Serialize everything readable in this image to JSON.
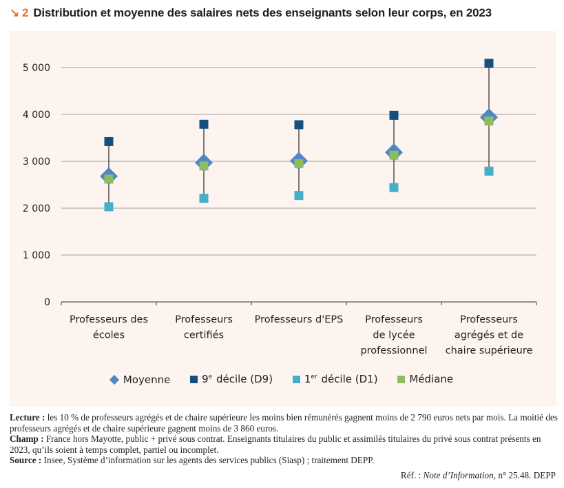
{
  "title": {
    "arrow": "↘",
    "number": "2",
    "text": "Distribution et moyenne des salaires nets des enseignants selon leur corps, en 2023"
  },
  "colors": {
    "panel_bg": "#fdf4ef",
    "moyenne": "#4f86c6",
    "d9": "#14507f",
    "d1": "#45afc7",
    "mediane": "#91bb60",
    "title_accent": "#e8702a"
  },
  "chart_data": {
    "type": "scatter",
    "title": "Distribution et moyenne des salaires nets des enseignants selon leur corps, en 2023",
    "xlabel": "",
    "ylabel": "",
    "ylim": [
      0,
      5000
    ],
    "yticks": [
      0,
      1000,
      2000,
      3000,
      4000,
      5000
    ],
    "ytick_labels": [
      "0",
      "1 000",
      "2 000",
      "3 000",
      "4 000",
      "5 000"
    ],
    "grid": true,
    "categories": [
      [
        "Professeurs des",
        "écoles"
      ],
      [
        "Professeurs",
        "certifiés"
      ],
      [
        "Professeurs d'EPS"
      ],
      [
        "Professeurs",
        "de lycée",
        "professionnel"
      ],
      [
        "Professeurs",
        "agrégés et de",
        "chaire supérieure"
      ]
    ],
    "series": [
      {
        "name": "Moyenne",
        "marker": "diamond",
        "values": [
          2680,
          2970,
          3010,
          3190,
          3940
        ]
      },
      {
        "name": "9e décile (D9)",
        "marker": "square",
        "values": [
          3420,
          3790,
          3780,
          3980,
          5090
        ]
      },
      {
        "name": "1er décile (D1)",
        "marker": "square",
        "values": [
          2030,
          2210,
          2270,
          2440,
          2790
        ]
      },
      {
        "name": "Médiane",
        "marker": "square",
        "values": [
          2620,
          2900,
          2950,
          3130,
          3860
        ]
      }
    ],
    "legend_position": "bottom"
  },
  "legend": {
    "moyenne": "Moyenne",
    "d9_pre": "9",
    "d9_sup": "e",
    "d9_post": " décile (D9)",
    "d1_pre": "1",
    "d1_sup": "er",
    "d1_post": " décile (D1)",
    "mediane": "Médiane"
  },
  "notes": {
    "lecture_label": "Lecture :",
    "lecture_text": " les 10 % de professeurs agrégés et de chaire supérieure les moins bien rémunérés gagnent moins de 2 790 euros nets par mois. La moitié des professeurs agrégés et de chaire supérieure gagnent moins de 3 860 euros.",
    "champ_label": "Champ :",
    "champ_text": " France hors Mayotte, public + privé sous contrat. Enseignants titulaires du public et assimilés titulaires du privé sous contrat présents en 2023, qu’ils soient à temps complet, partiel ou incomplet.",
    "source_label": "Source :",
    "source_text": " Insee, Système d’information sur les agents des services publics (Siasp) ; traitement DEPP.",
    "ref_pre": "Réf. : ",
    "ref_italic": "Note d’Information",
    "ref_post": ", n° 25.48. DEPP"
  }
}
